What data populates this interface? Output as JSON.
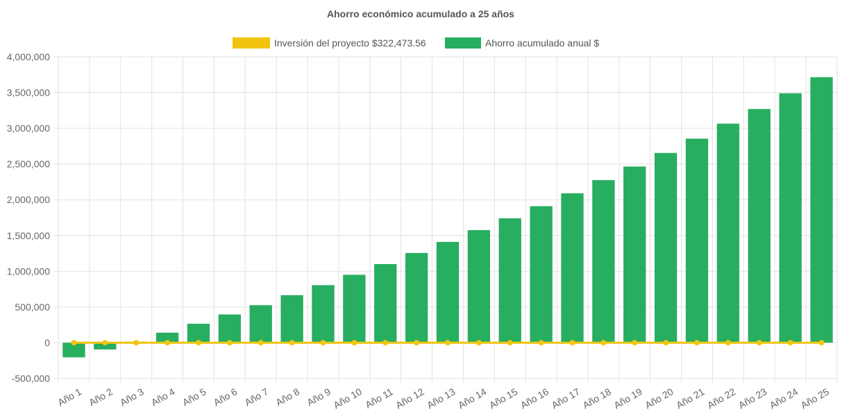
{
  "chart_data": {
    "type": "bar",
    "title": "Ahorro económico acumulado a 25 años",
    "categories": [
      "Año 1",
      "Año 2",
      "Año 3",
      "Año 4",
      "Año 5",
      "Año 6",
      "Año 7",
      "Año 8",
      "Año 9",
      "Año 10",
      "Año 11",
      "Año 12",
      "Año 13",
      "Año 14",
      "Año 15",
      "Año 16",
      "Año 17",
      "Año 18",
      "Año 19",
      "Año 20",
      "Año 21",
      "Año 22",
      "Año 23",
      "Año 24",
      "Año 25"
    ],
    "series": [
      {
        "name": "Inversión del proyecto $322,473.56",
        "type": "line",
        "color": "#f1c40f",
        "values": [
          0,
          0,
          0,
          0,
          0,
          0,
          0,
          0,
          0,
          0,
          0,
          0,
          0,
          0,
          0,
          0,
          0,
          0,
          0,
          0,
          0,
          0,
          0,
          0,
          0
        ]
      },
      {
        "name": "Ahorro acumulado anual $",
        "type": "bar",
        "color": "#27ae60",
        "values": [
          -205000,
          -95000,
          15000,
          140000,
          265000,
          395000,
          525000,
          665000,
          805000,
          950000,
          1100000,
          1255000,
          1410000,
          1575000,
          1740000,
          1910000,
          2090000,
          2275000,
          2465000,
          2655000,
          2855000,
          3065000,
          3270000,
          3490000,
          3715000
        ]
      }
    ],
    "yticks": [
      "4,000,000",
      "3,500,000",
      "3,000,000",
      "2,500,000",
      "2,000,000",
      "1,500,000",
      "1,000,000",
      "500,000",
      "0",
      "-500,000"
    ],
    "ylim": [
      -500000,
      4000000
    ],
    "legend": "top-center",
    "grid": true
  }
}
